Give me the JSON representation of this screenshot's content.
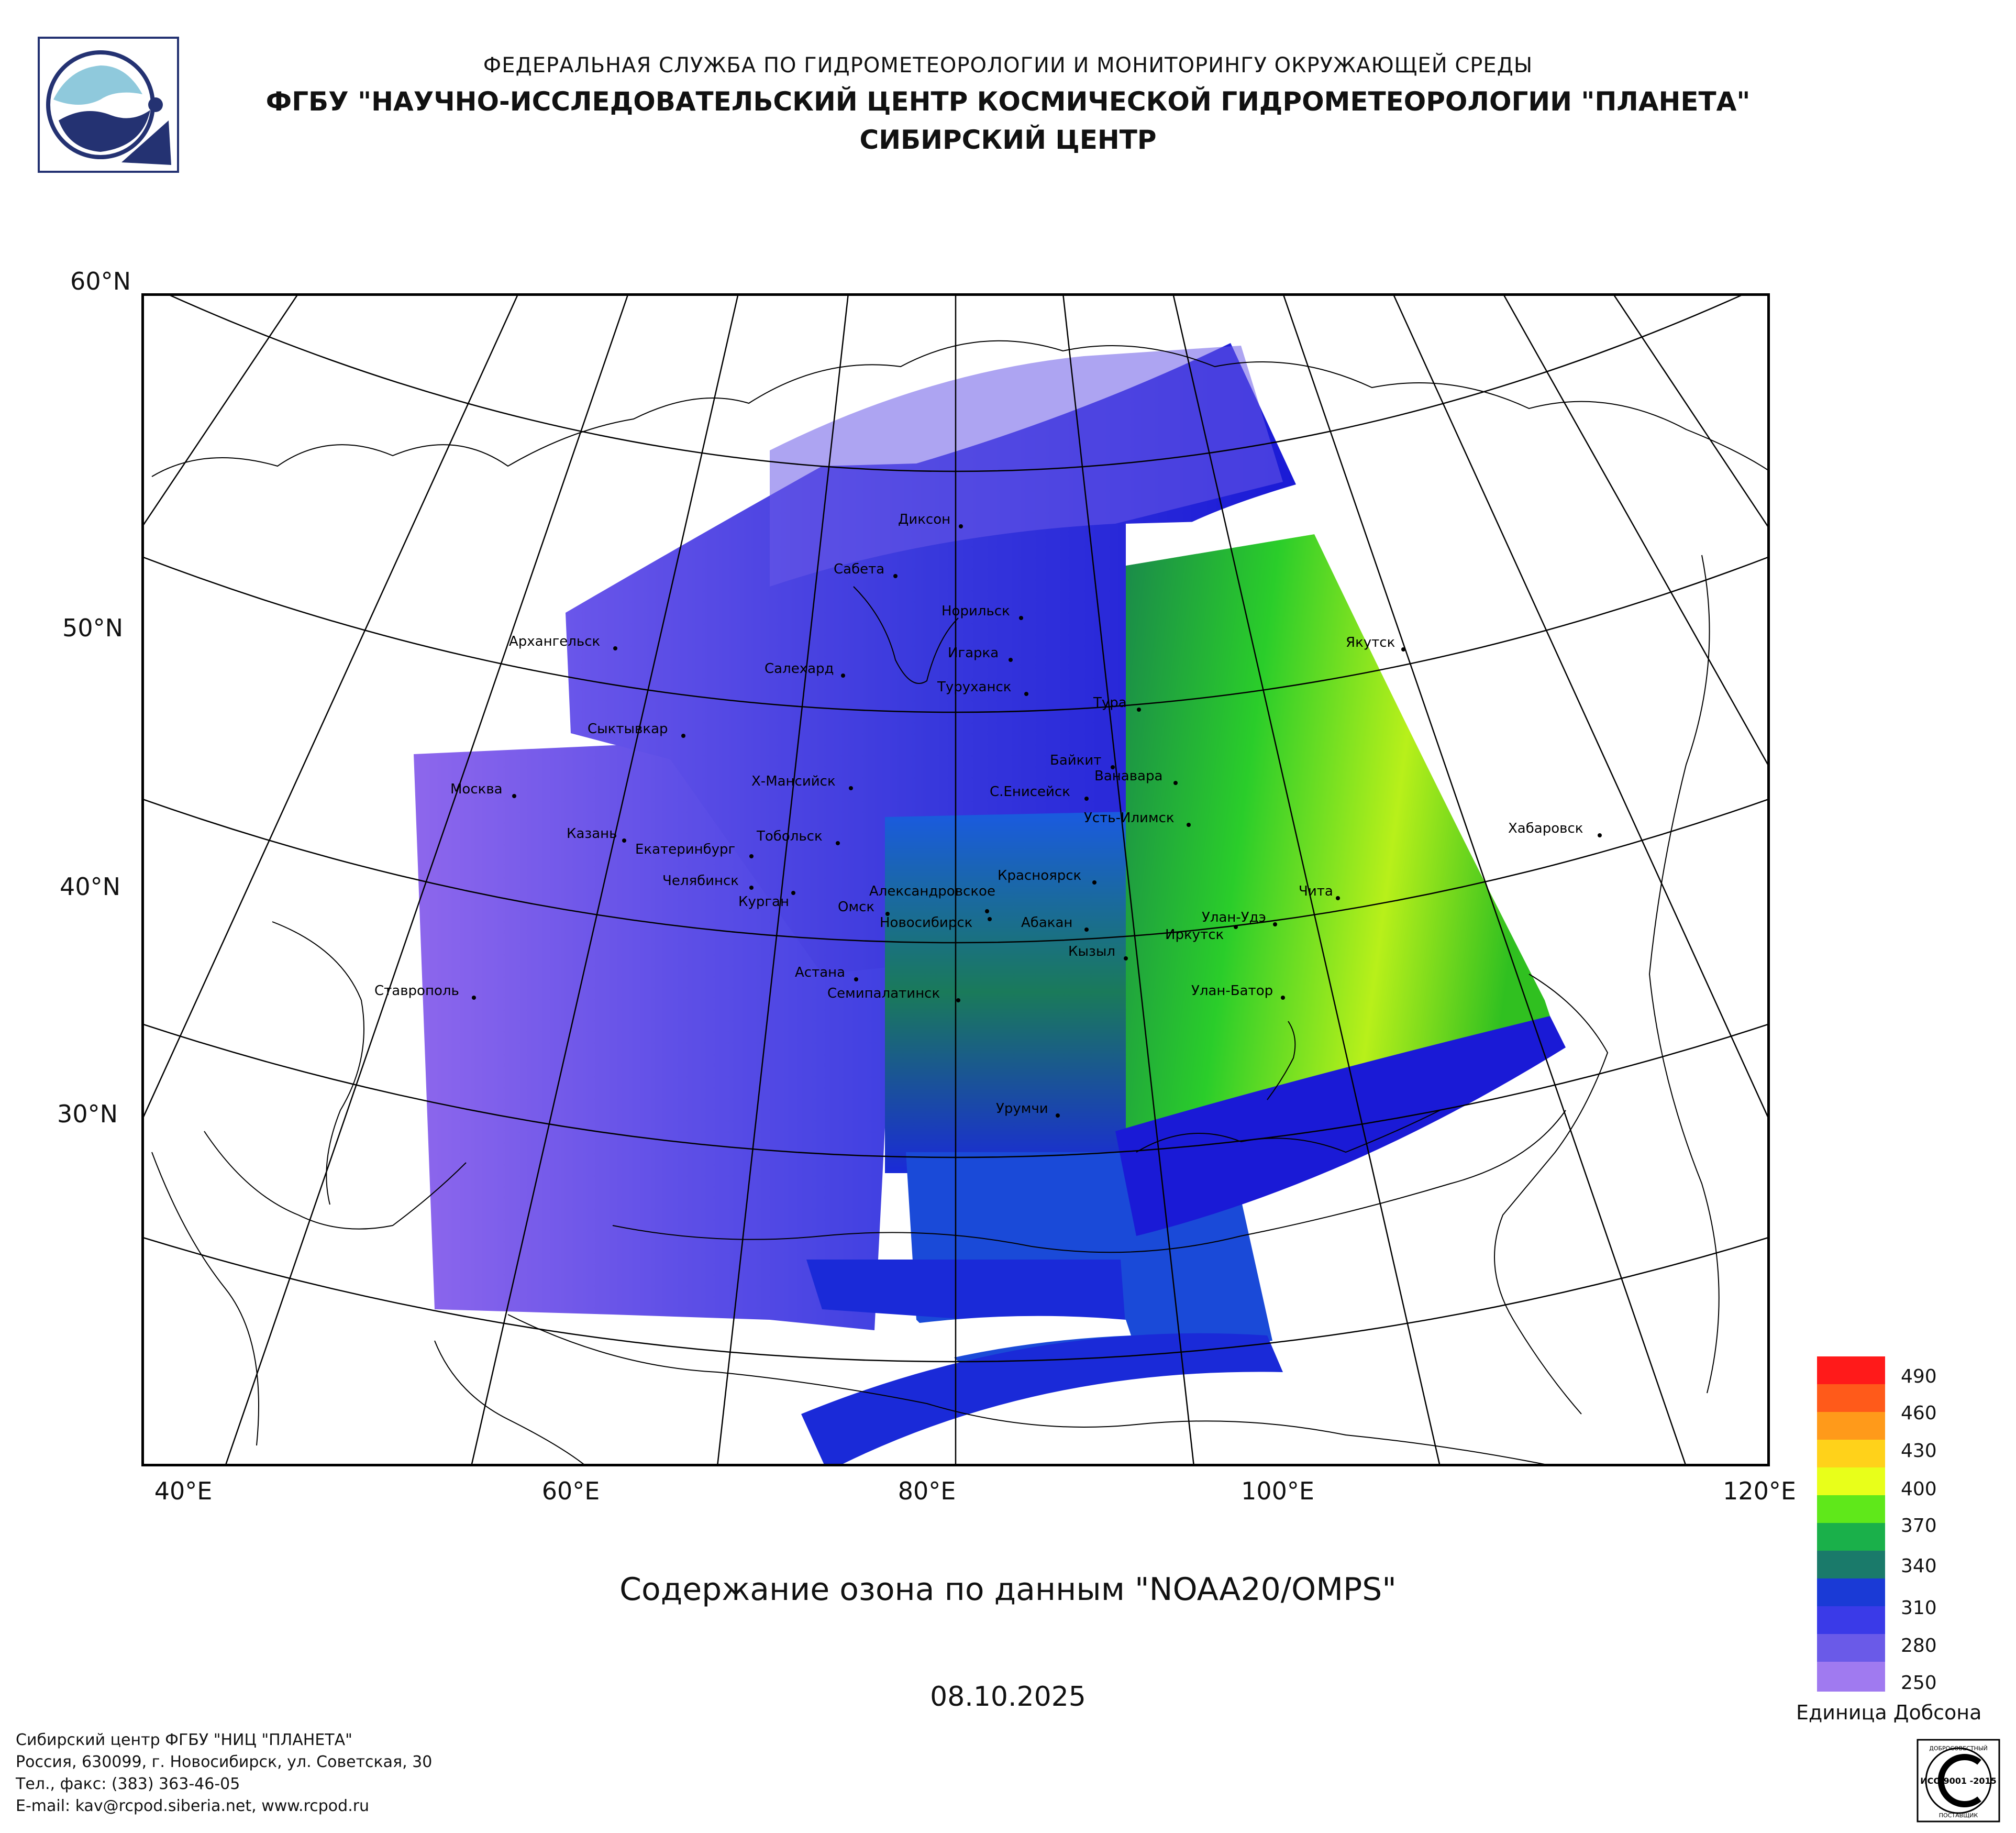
{
  "header": {
    "line1": "ФЕДЕРАЛЬНАЯ СЛУЖБА ПО ГИДРОМЕТЕОРОЛОГИИ И МОНИТОРИНГУ ОКРУЖАЮЩЕЙ СРЕДЫ",
    "line2": "ФГБУ \"НАУЧНО-ИССЛЕДОВАТЕЛЬСКИЙ ЦЕНТР КОСМИЧЕСКОЙ ГИДРОМЕТЕОРОЛОГИИ \"ПЛАНЕТА\"",
    "line3": "СИБИРСКИЙ ЦЕНТР"
  },
  "map": {
    "lat_labels": [
      "60°N",
      "50°N",
      "40°N",
      "30°N"
    ],
    "lon_labels": [
      "40°E",
      "60°E",
      "80°E",
      "100°E",
      "120°E"
    ],
    "cities": [
      "Диксон",
      "Сабета",
      "Норильск",
      "Игарка",
      "Архангельск",
      "Салехард",
      "Туруханск",
      "Тура",
      "Якутск",
      "Сыктывкар",
      "Байкит",
      "Ванавара",
      "Х-Мансийск",
      "С.Енисейск",
      "Москва",
      "Усть-Илимск",
      "Хабаровск",
      "Казань",
      "Тобольск",
      "Екатеринбург",
      "Красноярск",
      "Челябинск",
      "Александровское",
      "Курган",
      "Омск",
      "Новосибирск",
      "Чита",
      "Абакан",
      "Улан-Удэ",
      "Иркутск",
      "Кызыл",
      "Астана",
      "Ставрополь",
      "Семипалатинск",
      "Улан-Батор",
      "Урумчи"
    ]
  },
  "title": "Содержание озона по данным \"NOAA20/OMPS\"",
  "date": "08.10.2025",
  "legend": {
    "labels": [
      "490",
      "460",
      "430",
      "400",
      "370",
      "340",
      "310",
      "280",
      "250"
    ],
    "unit": "Единица Добсона",
    "colors": [
      "#ff1a1a",
      "#ff5a1a",
      "#ff9a1a",
      "#ffd21a",
      "#e8ff1a",
      "#5fe81a",
      "#1ab04a",
      "#1a7a6a",
      "#1a3ad6",
      "#3a3ae8",
      "#6a5ae8",
      "#a07af0"
    ]
  },
  "footer": {
    "line1": "Сибирский центр ФГБУ \"НИЦ \"ПЛАНЕТА\"",
    "line2": "Россия, 630099, г. Новосибирск, ул. Советская, 30",
    "line3": "Тел., факс: (383) 363-46-05",
    "line4": "E-mail: kav@rcpod.siberia.net, www.rcpod.ru"
  },
  "iso_badge": {
    "top": "ДОБРОСОВЕСТНЫЙ",
    "mid": "ИСО 9001 -2015",
    "bottom": "ПОСТАВЩИК"
  }
}
